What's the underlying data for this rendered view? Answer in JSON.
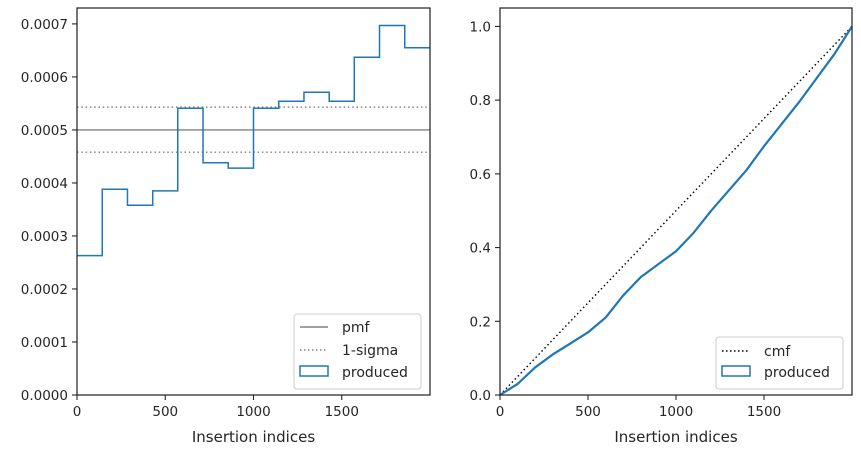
{
  "figure": {
    "background": "#ffffff",
    "text_color": "#262626",
    "axes_color": "#262626"
  },
  "chart_data": [
    {
      "type": "histogram",
      "title": "",
      "xlabel": "Insertion indices",
      "ylabel": "",
      "xlim": [
        0,
        2000
      ],
      "ylim": [
        0,
        0.00073
      ],
      "x_ticks": [
        0,
        500,
        1000,
        1500
      ],
      "x_tick_labels": [
        "0",
        "500",
        "1000",
        "1500"
      ],
      "y_ticks": [
        0,
        0.0001,
        0.0002,
        0.0003,
        0.0004,
        0.0005,
        0.0006,
        0.0007
      ],
      "y_tick_labels": [
        "0.0000",
        "0.0001",
        "0.0002",
        "0.0003",
        "0.0004",
        "0.0005",
        "0.0006",
        "0.0007"
      ],
      "grid": false,
      "legend_position": "lower right",
      "reference_lines": [
        {
          "name": "pmf",
          "style": "solid",
          "color": "#808080",
          "y": 0.0005
        },
        {
          "name": "1-sigma",
          "style": "dotted",
          "color": "#808080",
          "y": 0.000543
        },
        {
          "name": "1-sigma",
          "style": "dotted",
          "color": "#808080",
          "y": 0.000458
        }
      ],
      "series": [
        {
          "name": "produced",
          "color": "#1f77b4",
          "bin_edges": [
            0,
            143,
            286,
            429,
            571,
            714,
            857,
            1000,
            1143,
            1286,
            1429,
            1571,
            1714,
            1857,
            2000
          ],
          "values": [
            0.000263,
            0.000388,
            0.000358,
            0.000385,
            0.000541,
            0.000438,
            0.000428,
            0.000541,
            0.000554,
            0.000571,
            0.000554,
            0.000637,
            0.000697,
            0.000655
          ]
        }
      ],
      "legend": [
        {
          "label": "pmf",
          "style": "solid",
          "color": "#808080"
        },
        {
          "label": "1-sigma",
          "style": "dotted",
          "color": "#808080"
        },
        {
          "label": "produced",
          "style": "box",
          "color": "#1f77b4"
        }
      ]
    },
    {
      "type": "line",
      "title": "",
      "xlabel": "Insertion indices",
      "ylabel": "",
      "xlim": [
        0,
        2000
      ],
      "ylim": [
        0,
        1.05
      ],
      "x_ticks": [
        0,
        500,
        1000,
        1500
      ],
      "x_tick_labels": [
        "0",
        "500",
        "1000",
        "1500"
      ],
      "y_ticks": [
        0,
        0.2,
        0.4,
        0.6,
        0.8,
        1.0
      ],
      "y_tick_labels": [
        "0.0",
        "0.2",
        "0.4",
        "0.6",
        "0.8",
        "1.0"
      ],
      "grid": false,
      "legend_position": "lower right",
      "series": [
        {
          "name": "cmf",
          "style": "dotted",
          "color": "#000000",
          "x": [
            0,
            2000
          ],
          "y": [
            0,
            1.0
          ]
        },
        {
          "name": "produced",
          "style": "solid",
          "color": "#1f77b4",
          "x": [
            0,
            100,
            200,
            300,
            400,
            500,
            600,
            700,
            800,
            900,
            1000,
            1100,
            1200,
            1300,
            1400,
            1500,
            1600,
            1700,
            1800,
            1900,
            2000
          ],
          "y": [
            0,
            0.03,
            0.075,
            0.11,
            0.14,
            0.17,
            0.21,
            0.27,
            0.32,
            0.355,
            0.39,
            0.44,
            0.5,
            0.555,
            0.61,
            0.675,
            0.735,
            0.795,
            0.86,
            0.925,
            1.0
          ]
        }
      ],
      "legend": [
        {
          "label": "cmf",
          "style": "dotted",
          "color": "#000000"
        },
        {
          "label": "produced",
          "style": "box",
          "color": "#1f77b4"
        }
      ]
    }
  ]
}
